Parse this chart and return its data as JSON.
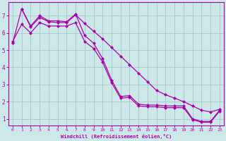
{
  "xlabel": "Windchill (Refroidissement éolien,°C)",
  "bg_color": "#cce8e8",
  "grid_color": "#aacccc",
  "line_color": "#aa00aa",
  "xlim": [
    -0.5,
    23.5
  ],
  "ylim": [
    0.6,
    7.8
  ],
  "xticks": [
    0,
    1,
    2,
    3,
    4,
    5,
    6,
    7,
    8,
    9,
    10,
    11,
    12,
    13,
    14,
    15,
    16,
    17,
    18,
    19,
    20,
    21,
    22,
    23
  ],
  "yticks": [
    1,
    2,
    3,
    4,
    5,
    6,
    7
  ],
  "line1_x": [
    0,
    1,
    2,
    3,
    4,
    5,
    6,
    7,
    8,
    9,
    10,
    11,
    12,
    13,
    14,
    15,
    16,
    17,
    18,
    19,
    20,
    21,
    22,
    23
  ],
  "line1_y": [
    5.4,
    7.4,
    6.4,
    7.0,
    6.7,
    6.7,
    6.65,
    7.1,
    5.85,
    5.4,
    4.5,
    3.25,
    2.3,
    2.35,
    1.85,
    1.8,
    1.8,
    1.75,
    1.75,
    1.75,
    1.0,
    0.85,
    0.85,
    1.5
  ],
  "line2_x": [
    1,
    2,
    3,
    4,
    5,
    6,
    7,
    8,
    9,
    10,
    11,
    12,
    13,
    14,
    15,
    16,
    17,
    18,
    19,
    20,
    21,
    22,
    23
  ],
  "line2_y": [
    7.4,
    6.35,
    6.9,
    6.65,
    6.6,
    6.6,
    7.05,
    6.55,
    6.1,
    5.65,
    5.15,
    4.65,
    4.15,
    3.65,
    3.15,
    2.65,
    2.4,
    2.2,
    2.0,
    1.75,
    1.5,
    1.4,
    1.55
  ],
  "line3_x": [
    0,
    1,
    2,
    3,
    4,
    5,
    6,
    7,
    8,
    9,
    10,
    11,
    12,
    13,
    14,
    15,
    16,
    17,
    18,
    19,
    20,
    21,
    22,
    23
  ],
  "line3_y": [
    5.5,
    6.5,
    6.0,
    6.6,
    6.4,
    6.4,
    6.4,
    6.6,
    5.5,
    5.1,
    4.3,
    3.1,
    2.2,
    2.25,
    1.75,
    1.7,
    1.7,
    1.65,
    1.65,
    1.65,
    0.95,
    0.8,
    0.8,
    1.45
  ]
}
